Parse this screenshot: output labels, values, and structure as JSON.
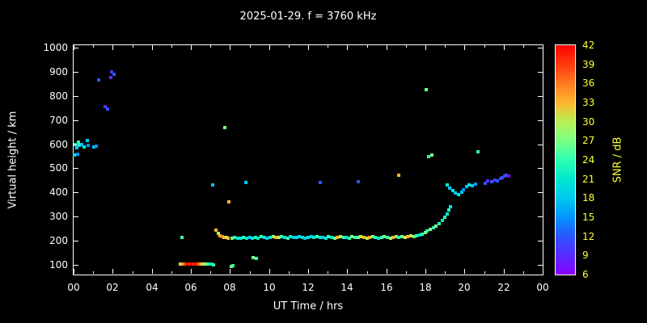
{
  "title": "2025-01-29. f = 3760 kHz",
  "colors": {
    "background": "#000000",
    "axis": "#ffffff",
    "text": "#ffffff",
    "colorbar_text": "#ffff33"
  },
  "chart_data": {
    "type": "scatter",
    "title": "2025-01-29. f = 3760 kHz",
    "xlabel": "UT Time / hrs",
    "ylabel": "Virtual height / km",
    "grid": false,
    "legend": false,
    "xlim": [
      0,
      24
    ],
    "ylim": [
      60,
      1010
    ],
    "xticks": {
      "values": [
        0,
        2,
        4,
        6,
        8,
        10,
        12,
        14,
        16,
        18,
        20,
        22,
        24
      ],
      "labels": [
        "00",
        "02",
        "04",
        "06",
        "08",
        "10",
        "12",
        "14",
        "16",
        "18",
        "20",
        "22",
        "00"
      ]
    },
    "yticks": {
      "values": [
        100,
        200,
        300,
        400,
        500,
        600,
        700,
        800,
        900,
        1000
      ]
    },
    "colorbar": {
      "label": "SNR / dB",
      "min": 6,
      "max": 42,
      "tick_values": [
        42,
        39,
        36,
        33,
        30,
        27,
        24,
        21,
        18,
        15,
        12,
        9,
        6
      ],
      "stops": [
        {
          "v": 6,
          "c": "#8a00ff"
        },
        {
          "v": 9,
          "c": "#5a2bff"
        },
        {
          "v": 12,
          "c": "#2a55ff"
        },
        {
          "v": 15,
          "c": "#0095ff"
        },
        {
          "v": 18,
          "c": "#00c8f0"
        },
        {
          "v": 21,
          "c": "#00e8d0"
        },
        {
          "v": 24,
          "c": "#2effb2"
        },
        {
          "v": 27,
          "c": "#7aff85"
        },
        {
          "v": 30,
          "c": "#b8f055"
        },
        {
          "v": 33,
          "c": "#ffb52e"
        },
        {
          "v": 36,
          "c": "#ff7a1e"
        },
        {
          "v": 39,
          "c": "#ff3a0e"
        },
        {
          "v": 42,
          "c": "#ff0000"
        }
      ]
    },
    "points_format": [
      "ut_hours",
      "virtual_height_km",
      "snr_db"
    ],
    "points": [
      [
        0.05,
        555,
        21
      ],
      [
        0.1,
        600,
        21
      ],
      [
        0.15,
        585,
        18
      ],
      [
        0.2,
        560,
        15
      ],
      [
        0.25,
        610,
        24
      ],
      [
        0.3,
        595,
        21
      ],
      [
        0.4,
        600,
        18
      ],
      [
        0.55,
        590,
        21
      ],
      [
        0.7,
        615,
        18
      ],
      [
        0.75,
        595,
        15
      ],
      [
        1.05,
        590,
        18
      ],
      [
        1.15,
        592,
        15
      ],
      [
        1.3,
        865,
        12
      ],
      [
        1.6,
        755,
        9
      ],
      [
        1.75,
        745,
        12
      ],
      [
        1.9,
        875,
        9
      ],
      [
        1.95,
        900,
        9
      ],
      [
        2.05,
        890,
        12
      ],
      [
        5.55,
        215,
        24
      ],
      [
        5.45,
        105,
        30
      ],
      [
        5.55,
        104,
        33
      ],
      [
        5.65,
        105,
        36
      ],
      [
        5.75,
        103,
        39
      ],
      [
        5.85,
        105,
        42
      ],
      [
        5.95,
        104,
        39
      ],
      [
        6.05,
        103,
        42
      ],
      [
        6.15,
        105,
        39
      ],
      [
        6.25,
        104,
        42
      ],
      [
        6.35,
        105,
        39
      ],
      [
        6.45,
        103,
        36
      ],
      [
        6.55,
        105,
        33
      ],
      [
        6.65,
        104,
        30
      ],
      [
        6.8,
        103,
        27
      ],
      [
        6.95,
        105,
        24
      ],
      [
        7.05,
        102,
        21
      ],
      [
        7.15,
        100,
        24
      ],
      [
        7.1,
        430,
        18
      ],
      [
        7.3,
        245,
        33
      ],
      [
        7.4,
        230,
        30
      ],
      [
        7.5,
        222,
        33
      ],
      [
        7.6,
        218,
        36
      ],
      [
        7.7,
        213,
        33
      ],
      [
        7.8,
        215,
        30
      ],
      [
        7.9,
        210,
        33
      ],
      [
        7.75,
        670,
        27
      ],
      [
        7.95,
        360,
        33
      ],
      [
        8.05,
        95,
        27
      ],
      [
        8.15,
        98,
        24
      ],
      [
        8.1,
        212,
        27
      ],
      [
        8.25,
        215,
        24
      ],
      [
        8.4,
        210,
        21
      ],
      [
        8.8,
        440,
        18
      ],
      [
        9.2,
        130,
        27
      ],
      [
        9.35,
        128,
        24
      ],
      [
        8.55,
        212,
        21
      ],
      [
        8.7,
        215,
        24
      ],
      [
        8.85,
        210,
        21
      ],
      [
        9.0,
        214,
        18
      ],
      [
        9.15,
        212,
        21
      ],
      [
        9.3,
        215,
        24
      ],
      [
        9.45,
        212,
        21
      ],
      [
        9.6,
        216,
        24
      ],
      [
        9.75,
        213,
        21
      ],
      [
        9.9,
        210,
        18
      ],
      [
        10.05,
        214,
        21
      ],
      [
        10.2,
        216,
        27
      ],
      [
        10.35,
        213,
        33
      ],
      [
        10.5,
        215,
        30
      ],
      [
        10.65,
        218,
        24
      ],
      [
        10.8,
        214,
        21
      ],
      [
        10.95,
        212,
        24
      ],
      [
        11.1,
        216,
        21
      ],
      [
        11.25,
        213,
        18
      ],
      [
        11.4,
        215,
        21
      ],
      [
        11.55,
        217,
        18
      ],
      [
        11.7,
        214,
        21
      ],
      [
        11.85,
        212,
        18
      ],
      [
        12.0,
        215,
        21
      ],
      [
        12.15,
        217,
        18
      ],
      [
        12.3,
        214,
        21
      ],
      [
        12.45,
        216,
        24
      ],
      [
        12.6,
        213,
        21
      ],
      [
        12.6,
        440,
        12
      ],
      [
        12.75,
        215,
        18
      ],
      [
        12.9,
        212,
        21
      ],
      [
        13.05,
        216,
        24
      ],
      [
        13.2,
        214,
        21
      ],
      [
        13.35,
        212,
        27
      ],
      [
        13.5,
        215,
        33
      ],
      [
        13.65,
        217,
        30
      ],
      [
        13.8,
        213,
        24
      ],
      [
        13.95,
        215,
        21
      ],
      [
        14.1,
        212,
        24
      ],
      [
        14.25,
        216,
        27
      ],
      [
        14.4,
        213,
        24
      ],
      [
        14.55,
        215,
        27
      ],
      [
        14.55,
        445,
        12
      ],
      [
        14.7,
        217,
        30
      ],
      [
        14.85,
        214,
        33
      ],
      [
        15.0,
        212,
        30
      ],
      [
        15.15,
        215,
        33
      ],
      [
        15.3,
        217,
        27
      ],
      [
        15.45,
        214,
        24
      ],
      [
        15.6,
        212,
        21
      ],
      [
        15.75,
        215,
        24
      ],
      [
        15.9,
        217,
        27
      ],
      [
        16.05,
        214,
        24
      ],
      [
        16.2,
        212,
        30
      ],
      [
        16.35,
        215,
        33
      ],
      [
        16.5,
        217,
        27
      ],
      [
        16.65,
        214,
        24
      ],
      [
        16.65,
        470,
        33
      ],
      [
        16.8,
        216,
        27
      ],
      [
        16.95,
        213,
        30
      ],
      [
        17.1,
        217,
        33
      ],
      [
        17.25,
        220,
        30
      ],
      [
        17.4,
        216,
        27
      ],
      [
        17.55,
        222,
        24
      ],
      [
        17.7,
        225,
        21
      ],
      [
        17.85,
        228,
        24
      ],
      [
        18.0,
        235,
        27
      ],
      [
        18.05,
        825,
        27
      ],
      [
        18.15,
        550,
        24
      ],
      [
        18.35,
        555,
        27
      ],
      [
        18.1,
        240,
        24
      ],
      [
        18.25,
        248,
        27
      ],
      [
        18.4,
        255,
        24
      ],
      [
        18.55,
        262,
        27
      ],
      [
        18.7,
        272,
        24
      ],
      [
        18.85,
        285,
        21
      ],
      [
        19.0,
        298,
        24
      ],
      [
        19.1,
        312,
        21
      ],
      [
        19.2,
        326,
        24
      ],
      [
        19.3,
        342,
        21
      ],
      [
        19.1,
        430,
        21
      ],
      [
        19.25,
        418,
        18
      ],
      [
        19.4,
        408,
        21
      ],
      [
        19.55,
        398,
        18
      ],
      [
        19.7,
        392,
        21
      ],
      [
        19.85,
        400,
        18
      ],
      [
        19.95,
        412,
        15
      ],
      [
        20.1,
        424,
        18
      ],
      [
        20.25,
        432,
        21
      ],
      [
        20.4,
        428,
        18
      ],
      [
        20.55,
        436,
        15
      ],
      [
        20.7,
        570,
        24
      ],
      [
        21.05,
        438,
        12
      ],
      [
        21.2,
        448,
        9
      ],
      [
        21.4,
        444,
        12
      ],
      [
        21.55,
        452,
        9
      ],
      [
        21.7,
        448,
        12
      ],
      [
        21.85,
        458,
        9
      ],
      [
        21.95,
        462,
        12
      ],
      [
        22.05,
        468,
        9
      ],
      [
        22.15,
        472,
        12
      ],
      [
        22.25,
        468,
        6
      ]
    ]
  }
}
